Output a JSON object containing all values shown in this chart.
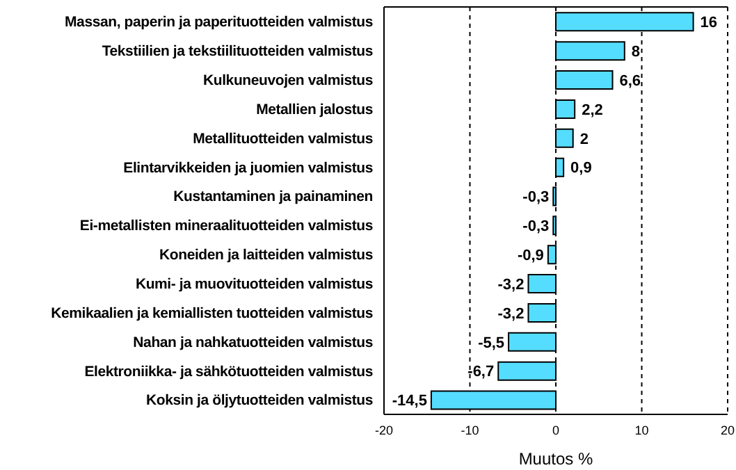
{
  "chart_data": {
    "type": "bar",
    "orientation": "horizontal",
    "xlabel": "Muutos %",
    "categories": [
      "Massan, paperin ja paperituotteiden valmistus",
      "Tekstiilien ja tekstiilituotteiden valmistus",
      "Kulkuneuvojen valmistus",
      "Metallien jalostus",
      "Metallituotteiden valmistus",
      "Elintarvikkeiden ja juomien valmistus",
      "Kustantaminen ja painaminen",
      "Ei-metallisten mineraalituotteiden valmistus",
      "Koneiden ja laitteiden valmistus",
      "Kumi- ja muovituotteiden valmistus",
      "Kemikaalien ja kemiallisten tuotteiden valmistus",
      "Nahan ja nahkatuotteiden valmistus",
      "Elektroniikka- ja sähkötuotteiden valmistus",
      "Koksin ja öljytuotteiden valmistus"
    ],
    "values": [
      16,
      8,
      6.6,
      2.2,
      2,
      0.9,
      -0.3,
      -0.3,
      -0.9,
      -3.2,
      -3.2,
      -5.5,
      -6.7,
      -14.5
    ],
    "value_labels": [
      "16",
      "8",
      "6,6",
      "2,2",
      "2",
      "0,9",
      "-0,3",
      "-0,3",
      "-0,9",
      "-3,2",
      "-3,2",
      "-5,5",
      "-6,7",
      "-14,5"
    ],
    "color": "#55ddff",
    "xlim": [
      -20,
      20
    ],
    "xticks": [
      -20,
      -10,
      0,
      10,
      20
    ],
    "grid": "x"
  }
}
